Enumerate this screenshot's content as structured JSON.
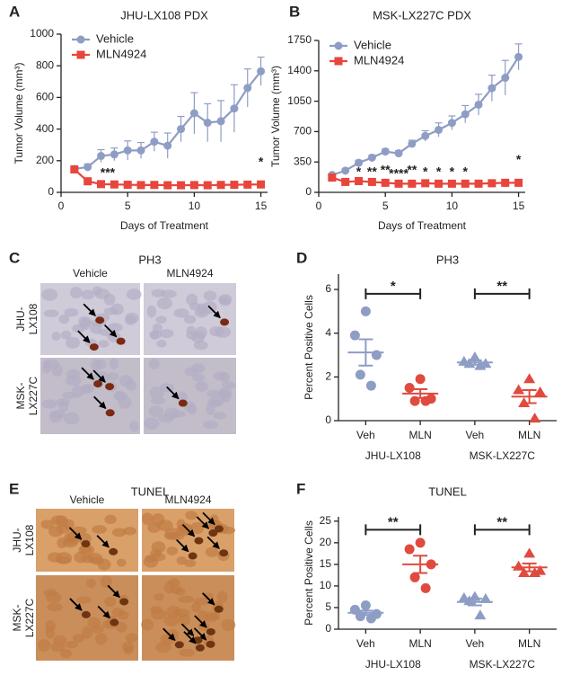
{
  "chart_data": [
    {
      "panel": "A",
      "type": "line",
      "title": "JHU-LX108 PDX",
      "x_label": "Days of Treatment",
      "y_label": "Tumor Volume (mm³)",
      "x": [
        1,
        2,
        3,
        4,
        5,
        6,
        7,
        8,
        9,
        10,
        11,
        12,
        13,
        14,
        15
      ],
      "xlim": [
        0,
        15.5
      ],
      "xticks": [
        0,
        5,
        10,
        15
      ],
      "ylim": [
        0,
        1000
      ],
      "yticks": [
        0,
        200,
        400,
        600,
        800,
        1000
      ],
      "grid": false,
      "legend": "upper left",
      "series": [
        {
          "name": "Vehicle",
          "color": "#8e9dc4",
          "marker": "circle",
          "values": [
            148,
            160,
            230,
            240,
            265,
            265,
            320,
            295,
            400,
            500,
            440,
            450,
            530,
            660,
            765
          ],
          "errors": [
            10,
            20,
            40,
            40,
            60,
            50,
            60,
            80,
            80,
            130,
            120,
            130,
            150,
            120,
            90
          ]
        },
        {
          "name": "MLN4924",
          "color": "#e8453c",
          "marker": "square",
          "values": [
            145,
            70,
            52,
            50,
            48,
            46,
            47,
            45,
            45,
            46,
            45,
            47,
            48,
            49,
            50
          ],
          "errors": [
            10,
            8,
            6,
            5,
            5,
            5,
            5,
            5,
            5,
            5,
            5,
            5,
            5,
            5,
            5
          ]
        }
      ],
      "annotations": [
        {
          "text": "***",
          "x": 3.5,
          "y": 120
        },
        {
          "text": "*",
          "x": 15,
          "y": 190
        }
      ]
    },
    {
      "panel": "B",
      "type": "line",
      "title": "MSK-LX227C PDX",
      "x_label": "Days of Treatment",
      "y_label": "Tumor Volume (mm³)",
      "x": [
        1,
        2,
        3,
        4,
        5,
        6,
        7,
        8,
        9,
        10,
        11,
        12,
        13,
        14,
        15
      ],
      "xlim": [
        0,
        15.5
      ],
      "xticks": [
        0,
        5,
        10,
        15
      ],
      "ylim": [
        0,
        1750
      ],
      "yticks": [
        0,
        350,
        700,
        1050,
        1400,
        1750
      ],
      "grid": false,
      "legend": "upper left",
      "series": [
        {
          "name": "Vehicle",
          "color": "#8e9dc4",
          "marker": "circle",
          "values": [
            200,
            250,
            340,
            400,
            470,
            450,
            560,
            650,
            720,
            800,
            900,
            1010,
            1200,
            1320,
            1560
          ],
          "errors": [
            15,
            20,
            30,
            30,
            30,
            30,
            40,
            60,
            80,
            80,
            100,
            120,
            150,
            200,
            150
          ]
        },
        {
          "name": "MLN4924",
          "color": "#e8453c",
          "marker": "square",
          "values": [
            170,
            120,
            130,
            120,
            110,
            100,
            100,
            105,
            100,
            100,
            100,
            100,
            105,
            110,
            110
          ],
          "errors": [
            10,
            10,
            10,
            10,
            10,
            10,
            10,
            10,
            10,
            10,
            10,
            10,
            10,
            10,
            10
          ]
        }
      ],
      "annotations": [
        {
          "text": "*",
          "x": 3,
          "y": 230
        },
        {
          "text": "**",
          "x": 4,
          "y": 230
        },
        {
          "text": "**",
          "x": 5,
          "y": 250
        },
        {
          "text": "****",
          "x": 6,
          "y": 210
        },
        {
          "text": "**",
          "x": 7,
          "y": 250
        },
        {
          "text": "*",
          "x": 8,
          "y": 230
        },
        {
          "text": "*",
          "x": 9,
          "y": 230
        },
        {
          "text": "*",
          "x": 10,
          "y": 230
        },
        {
          "text": "*",
          "x": 11,
          "y": 230
        },
        {
          "text": "*",
          "x": 15,
          "y": 370
        }
      ]
    },
    {
      "panel": "D",
      "type": "strip",
      "title": "PH3",
      "y_label": "Percent Positive Cells",
      "categories": [
        "Veh",
        "MLN",
        "Veh",
        "MLN"
      ],
      "groups": [
        "JHU-LX108",
        "MSK-LX227C"
      ],
      "points": [
        [
          5.0,
          3.9,
          3.0,
          2.1,
          1.6
        ],
        [
          1.9,
          1.5,
          1.0,
          0.9,
          0.9
        ],
        [
          2.9,
          2.7,
          2.6,
          2.6,
          2.5
        ],
        [
          1.9,
          1.4,
          1.3,
          0.8,
          0.1
        ]
      ],
      "means": [
        3.12,
        1.24,
        2.66,
        1.1
      ],
      "sems": [
        0.6,
        0.2,
        0.1,
        0.3
      ],
      "colors": [
        "#8e9dc4",
        "#e04a3f",
        "#8e9dc4",
        "#e04a3f"
      ],
      "markers": [
        "circle",
        "circle",
        "triangle",
        "triangle"
      ],
      "ylim": [
        0,
        6.7
      ],
      "yticks": [
        0,
        2,
        4,
        6
      ],
      "comparisons": [
        {
          "from": 0,
          "to": 1,
          "y": 5.8,
          "label": "*"
        },
        {
          "from": 2,
          "to": 3,
          "y": 5.8,
          "label": "**"
        }
      ]
    },
    {
      "panel": "F",
      "type": "strip",
      "title": "TUNEL",
      "y_label": "Percent Positive Cells",
      "categories": [
        "Veh",
        "MLN",
        "Veh",
        "MLN"
      ],
      "groups": [
        "JHU-LX108",
        "MSK-LX227C"
      ],
      "points": [
        [
          5.5,
          4.5,
          3.5,
          3.0,
          2.5
        ],
        [
          20,
          18.5,
          15,
          12,
          9.5
        ],
        [
          7.5,
          7.2,
          7.0,
          6.5,
          3.2
        ],
        [
          17.5,
          14.5,
          13.5,
          13,
          13
        ]
      ],
      "means": [
        3.8,
        15,
        6.3,
        14.3
      ],
      "sems": [
        0.5,
        2,
        0.8,
        0.9
      ],
      "colors": [
        "#8e9dc4",
        "#e04a3f",
        "#8e9dc4",
        "#e04a3f"
      ],
      "markers": [
        "circle",
        "circle",
        "triangle",
        "triangle"
      ],
      "ylim": [
        0,
        26
      ],
      "yticks": [
        0,
        5,
        10,
        15,
        20,
        25
      ],
      "comparisons": [
        {
          "from": 0,
          "to": 1,
          "y": 23,
          "label": "**"
        },
        {
          "from": 2,
          "to": 3,
          "y": 23,
          "label": "**"
        }
      ]
    }
  ],
  "image_panels": [
    {
      "panel": "C",
      "title": "PH3",
      "columns": [
        "Vehicle",
        "MLN4924"
      ],
      "rows": [
        [
          "JHU-",
          "LX108"
        ],
        [
          "MSK-",
          "LX227C"
        ]
      ]
    },
    {
      "panel": "E",
      "title": "TUNEL",
      "columns": [
        "Vehicle",
        "MLN4924"
      ],
      "rows": [
        [
          "JHU-",
          "LX108"
        ],
        [
          "MSK-",
          "LX227C"
        ]
      ]
    }
  ]
}
